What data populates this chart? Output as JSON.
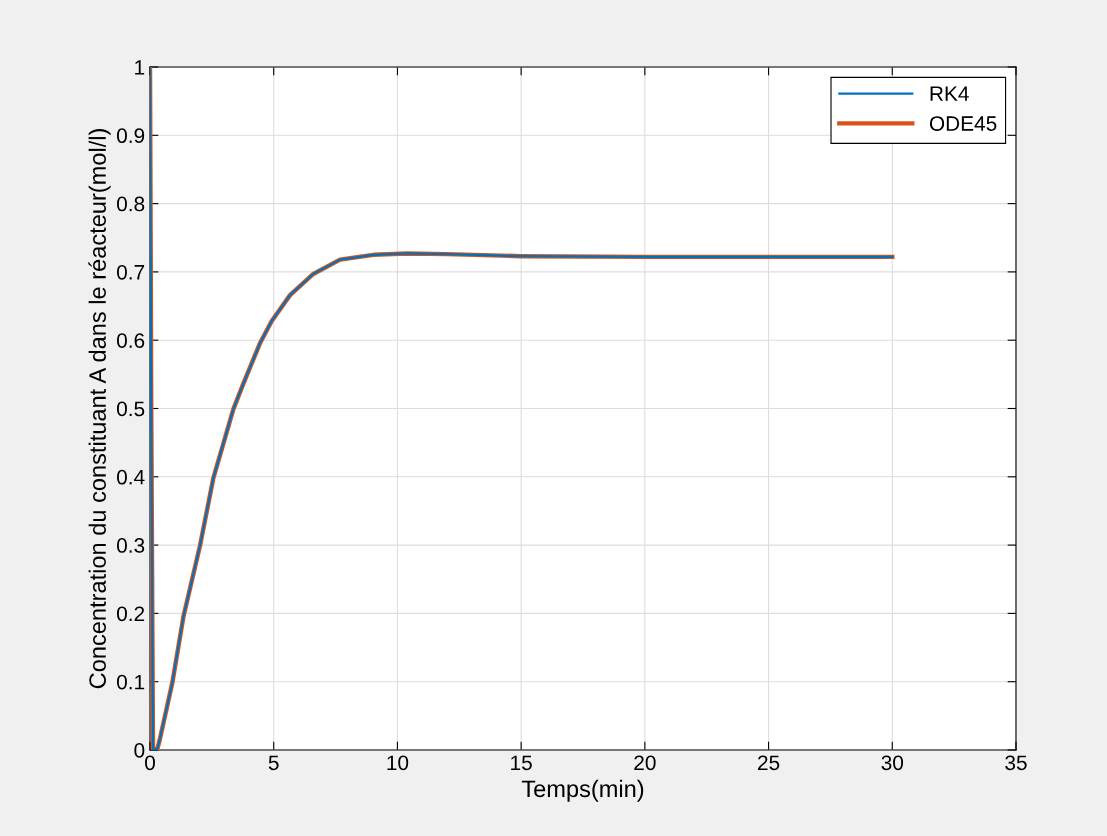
{
  "chart_data": {
    "type": "line",
    "xlabel": "Temps(min)",
    "ylabel": "Concentration du constituant A dans le réacteur(mol/l)",
    "xlim": [
      0,
      35
    ],
    "ylim": [
      0,
      1
    ],
    "xticks": [
      0,
      5,
      10,
      15,
      20,
      25,
      30,
      35
    ],
    "yticks": [
      0,
      0.1,
      0.2,
      0.3,
      0.4,
      0.5,
      0.6,
      0.7,
      0.8,
      0.9,
      1
    ],
    "grid": true,
    "legend": "top right",
    "line_style": "solid",
    "marker": "none",
    "series": [
      {
        "name": "RK4",
        "color": "#0072bd",
        "x": [
          0,
          0.05,
          0.12,
          0.3,
          0.4,
          0.9,
          1.35,
          2.02,
          2.56,
          3.37,
          3.77,
          4.45,
          4.92,
          5.66,
          6.6,
          7.68,
          9.03,
          10.4,
          12,
          15,
          20,
          25,
          30
        ],
        "values": [
          1,
          0.5,
          0,
          0.002,
          0.016,
          0.098,
          0.195,
          0.299,
          0.398,
          0.499,
          0.536,
          0.596,
          0.628,
          0.666,
          0.697,
          0.718,
          0.725,
          0.727,
          0.726,
          0.723,
          0.722,
          0.722,
          0.722
        ]
      },
      {
        "name": "ODE45",
        "color": "#d95319",
        "x": [
          0,
          0.05,
          0.12,
          0.3,
          0.4,
          0.9,
          1.35,
          2.02,
          2.56,
          3.37,
          3.77,
          4.45,
          4.92,
          5.66,
          6.6,
          7.68,
          9.03,
          10.4,
          12,
          15,
          20,
          25,
          30
        ],
        "values": [
          1,
          0.5,
          0,
          0.002,
          0.016,
          0.098,
          0.195,
          0.299,
          0.398,
          0.499,
          0.536,
          0.596,
          0.628,
          0.666,
          0.697,
          0.718,
          0.725,
          0.727,
          0.726,
          0.723,
          0.722,
          0.722,
          0.722
        ]
      }
    ]
  }
}
